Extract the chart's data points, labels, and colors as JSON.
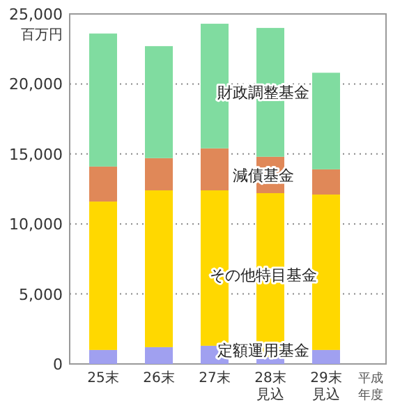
{
  "chart_data": {
    "type": "bar",
    "stacked": true,
    "ylabel": "百万円",
    "xlabel": "平成年度",
    "categories": [
      "25末",
      "26末",
      "27末",
      "28末見込",
      "29末見込"
    ],
    "series": [
      {
        "name": "定額運用基金",
        "color": "#a0a0f0",
        "values": [
          1000,
          1200,
          1300,
          500,
          1000
        ]
      },
      {
        "name": "その他特目基金",
        "color": "#ffd800",
        "values": [
          10600,
          11200,
          11100,
          11700,
          11100
        ]
      },
      {
        "name": "減債基金",
        "color": "#e08858",
        "values": [
          2500,
          2300,
          3000,
          2600,
          1800
        ]
      },
      {
        "name": "財政調整基金",
        "color": "#80dca0",
        "values": [
          9500,
          8000,
          8900,
          9200,
          6900
        ]
      }
    ],
    "ylim": [
      0,
      25000
    ],
    "yticks": [
      {
        "value": 0,
        "label": "0"
      },
      {
        "value": 5000,
        "label": "5,000"
      },
      {
        "value": 10000,
        "label": "10,000"
      },
      {
        "value": 15000,
        "label": "15,000"
      },
      {
        "value": 20000,
        "label": "20,000"
      },
      {
        "value": 25000,
        "label": "25,000"
      }
    ],
    "grid": "y",
    "legend": false
  }
}
